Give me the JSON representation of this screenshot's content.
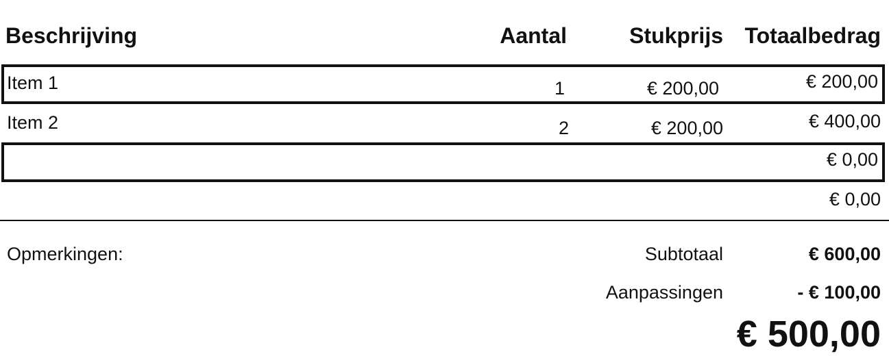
{
  "table": {
    "headers": {
      "description": "Beschrijving",
      "quantity": "Aantal",
      "unit_price": "Stukprijs",
      "total": "Totaalbedrag"
    },
    "rows": [
      {
        "description": "Item 1",
        "quantity": "1",
        "unit_price": "€ 200,00",
        "total": "€ 200,00",
        "highlighted": true
      },
      {
        "description": "Item 2",
        "quantity": "2",
        "unit_price": "€ 200,00",
        "total": "€ 400,00",
        "highlighted": false
      },
      {
        "description": "",
        "quantity": "",
        "unit_price": "",
        "total": "€ 0,00",
        "highlighted": true
      },
      {
        "description": "",
        "quantity": "",
        "unit_price": "",
        "total": "€ 0,00",
        "highlighted": false
      }
    ]
  },
  "summary": {
    "notes_label": "Opmerkingen:",
    "subtotal_label": "Subtotaal",
    "subtotal_value": "€ 600,00",
    "adjustments_label": "Aanpassingen",
    "adjustments_value": "- € 100,00",
    "grand_total": "€ 500,00"
  },
  "colors": {
    "text": "#111111",
    "border": "#111111",
    "background": "#ffffff"
  }
}
